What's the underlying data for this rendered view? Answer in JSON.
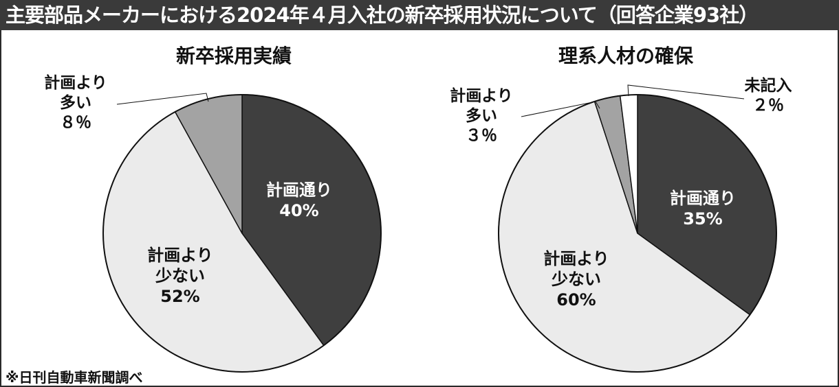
{
  "header": {
    "title": "主要部品メーカーにおける2024年４月入社の新卒採用状況について（回答企業93社）"
  },
  "footer": {
    "note": "※日刊自動車新聞調べ"
  },
  "colors": {
    "dark": "#3f3f3f",
    "light": "#ebebeb",
    "mid": "#a3a3a3",
    "white": "#ffffff"
  },
  "chart_data": [
    {
      "type": "pie",
      "title": "新卒採用実績",
      "slices": [
        {
          "label_lines": [
            "計画通り"
          ],
          "pct_label": "40%",
          "value": 40,
          "color": "#3f3f3f",
          "label_color": "#ffffff"
        },
        {
          "label_lines": [
            "計画より",
            "少ない"
          ],
          "pct_label": "52%",
          "value": 52,
          "color": "#ebebeb",
          "label_color": "#111111"
        },
        {
          "label_lines": [
            "計画より",
            "多い"
          ],
          "pct_label": "８％",
          "value": 8,
          "color": "#a3a3a3",
          "label_color": "#111111"
        }
      ]
    },
    {
      "type": "pie",
      "title": "理系人材の確保",
      "slices": [
        {
          "label_lines": [
            "計画通り"
          ],
          "pct_label": "35%",
          "value": 35,
          "color": "#3f3f3f",
          "label_color": "#ffffff"
        },
        {
          "label_lines": [
            "計画より",
            "少ない"
          ],
          "pct_label": "60%",
          "value": 60,
          "color": "#ebebeb",
          "label_color": "#111111"
        },
        {
          "label_lines": [
            "計画より",
            "多い"
          ],
          "pct_label": "３％",
          "value": 3,
          "color": "#a3a3a3",
          "label_color": "#111111"
        },
        {
          "label_lines": [
            "未記入"
          ],
          "pct_label": "２％",
          "value": 2,
          "color": "#ffffff",
          "label_color": "#111111"
        }
      ]
    }
  ]
}
